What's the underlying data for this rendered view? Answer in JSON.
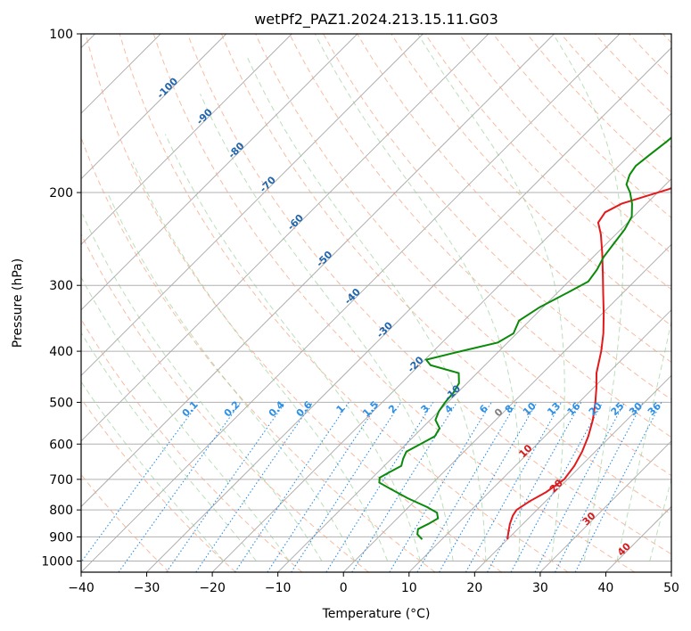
{
  "chart_data": {
    "type": "line",
    "title": "wetPf2_PAZ1.2024.213.15.11.G03",
    "xlabel": "Temperature (°C)",
    "ylabel": "Pressure (hPa)",
    "xlim": [
      -40,
      50
    ],
    "ylim_pressure": [
      1050,
      100
    ],
    "y_scale": "log",
    "x_ticks": [
      "−40",
      "−30",
      "−20",
      "−10",
      "0",
      "10",
      "20",
      "30",
      "40",
      "50"
    ],
    "y_ticks": [
      "100",
      "200",
      "300",
      "400",
      "500",
      "600",
      "700",
      "800",
      "900",
      "1000"
    ],
    "skewed_isotherm_labels": [
      {
        "text": "-100",
        "t": -100,
        "p": 128
      },
      {
        "text": "-90",
        "t": -90,
        "p": 145
      },
      {
        "text": "-80",
        "t": -80,
        "p": 168
      },
      {
        "text": "-70",
        "t": -70,
        "p": 195
      },
      {
        "text": "-60",
        "t": -60,
        "p": 230
      },
      {
        "text": "-50",
        "t": -50,
        "p": 270
      },
      {
        "text": "-40",
        "t": -40,
        "p": 318
      },
      {
        "text": "-30",
        "t": -30,
        "p": 368
      },
      {
        "text": "-20",
        "t": -20,
        "p": 428
      },
      {
        "text": "-10",
        "t": -10,
        "p": 485
      }
    ],
    "mixing_ratio_labels": [
      "0.1",
      "0.2",
      "0.4",
      "0.6",
      "1",
      "1.5",
      "2",
      "3",
      "4",
      "6",
      "8",
      "10",
      "13",
      "16",
      "20",
      "25",
      "30",
      "36"
    ],
    "isotherm_labels_low": [
      {
        "text": "0",
        "t": 0,
        "p": 528,
        "color": "gray"
      },
      {
        "text": "10",
        "t": 10,
        "p": 625,
        "color": "red"
      },
      {
        "text": "20",
        "t": 20,
        "p": 728,
        "color": "red"
      },
      {
        "text": "30",
        "t": 30,
        "p": 840,
        "color": "red"
      },
      {
        "text": "40",
        "t": 40,
        "p": 960,
        "color": "red"
      }
    ],
    "series": [
      {
        "color": "#e31a1c",
        "points": [
          {
            "p": 910,
            "t": 20.0
          },
          {
            "p": 880,
            "t": 19.0
          },
          {
            "p": 850,
            "t": 18.0
          },
          {
            "p": 820,
            "t": 17.2
          },
          {
            "p": 800,
            "t": 16.9
          },
          {
            "p": 770,
            "t": 17.6
          },
          {
            "p": 740,
            "t": 18.7
          },
          {
            "p": 700,
            "t": 19.5
          },
          {
            "p": 660,
            "t": 19.0
          },
          {
            "p": 620,
            "t": 18.0
          },
          {
            "p": 580,
            "t": 16.6
          },
          {
            "p": 540,
            "t": 14.8
          },
          {
            "p": 500,
            "t": 12.5
          },
          {
            "p": 470,
            "t": 10.5
          },
          {
            "p": 440,
            "t": 8.2
          },
          {
            "p": 400,
            "t": 5.6
          },
          {
            "p": 370,
            "t": 3.2
          },
          {
            "p": 340,
            "t": 0.3
          },
          {
            "p": 310,
            "t": -3.0
          },
          {
            "p": 285,
            "t": -6.0
          },
          {
            "p": 260,
            "t": -9.3
          },
          {
            "p": 240,
            "t": -12.3
          },
          {
            "p": 228,
            "t": -14.5
          },
          {
            "p": 218,
            "t": -15.0
          },
          {
            "p": 210,
            "t": -13.8
          },
          {
            "p": 203,
            "t": -11.2
          },
          {
            "p": 197,
            "t": -8.8
          },
          {
            "p": 190,
            "t": -7.0
          },
          {
            "p": 180,
            "t": -6.2
          },
          {
            "p": 170,
            "t": -5.8
          },
          {
            "p": 160,
            "t": -5.6
          },
          {
            "p": 150,
            "t": -5.6
          },
          {
            "p": 140,
            "t": -5.9
          },
          {
            "p": 130,
            "t": -6.6
          },
          {
            "p": 120,
            "t": -7.6
          },
          {
            "p": 110,
            "t": -8.8
          },
          {
            "p": 100,
            "t": -10.0
          }
        ]
      },
      {
        "color": "#0a8a0a",
        "points": [
          {
            "p": 910,
            "t": 7.0
          },
          {
            "p": 890,
            "t": 5.5
          },
          {
            "p": 870,
            "t": 4.8
          },
          {
            "p": 850,
            "t": 5.6
          },
          {
            "p": 830,
            "t": 6.2
          },
          {
            "p": 810,
            "t": 5.2
          },
          {
            "p": 790,
            "t": 2.8
          },
          {
            "p": 760,
            "t": -1.5
          },
          {
            "p": 730,
            "t": -5.5
          },
          {
            "p": 710,
            "t": -8.2
          },
          {
            "p": 695,
            "t": -8.9
          },
          {
            "p": 680,
            "t": -8.3
          },
          {
            "p": 660,
            "t": -7.4
          },
          {
            "p": 640,
            "t": -8.2
          },
          {
            "p": 620,
            "t": -8.8
          },
          {
            "p": 600,
            "t": -7.8
          },
          {
            "p": 580,
            "t": -6.8
          },
          {
            "p": 560,
            "t": -7.3
          },
          {
            "p": 540,
            "t": -9.2
          },
          {
            "p": 520,
            "t": -10.0
          },
          {
            "p": 500,
            "t": -10.4
          },
          {
            "p": 480,
            "t": -10.6
          },
          {
            "p": 460,
            "t": -11.2
          },
          {
            "p": 440,
            "t": -12.8
          },
          {
            "p": 425,
            "t": -18.3
          },
          {
            "p": 415,
            "t": -19.8
          },
          {
            "p": 400,
            "t": -15.8
          },
          {
            "p": 385,
            "t": -11.5
          },
          {
            "p": 370,
            "t": -10.5
          },
          {
            "p": 350,
            "t": -11.6
          },
          {
            "p": 330,
            "t": -10.5
          },
          {
            "p": 310,
            "t": -8.5
          },
          {
            "p": 295,
            "t": -7.0
          },
          {
            "p": 280,
            "t": -7.5
          },
          {
            "p": 265,
            "t": -8.4
          },
          {
            "p": 250,
            "t": -8.9
          },
          {
            "p": 235,
            "t": -9.4
          },
          {
            "p": 222,
            "t": -10.3
          },
          {
            "p": 210,
            "t": -12.2
          },
          {
            "p": 200,
            "t": -14.2
          },
          {
            "p": 193,
            "t": -16.0
          },
          {
            "p": 185,
            "t": -17.0
          },
          {
            "p": 178,
            "t": -17.4
          },
          {
            "p": 170,
            "t": -17.0
          },
          {
            "p": 160,
            "t": -16.4
          },
          {
            "p": 150,
            "t": -16.0
          },
          {
            "p": 140,
            "t": -15.4
          },
          {
            "p": 130,
            "t": -14.6
          },
          {
            "p": 120,
            "t": -13.8
          },
          {
            "p": 110,
            "t": -12.8
          },
          {
            "p": 100,
            "t": -11.8
          }
        ]
      }
    ]
  }
}
